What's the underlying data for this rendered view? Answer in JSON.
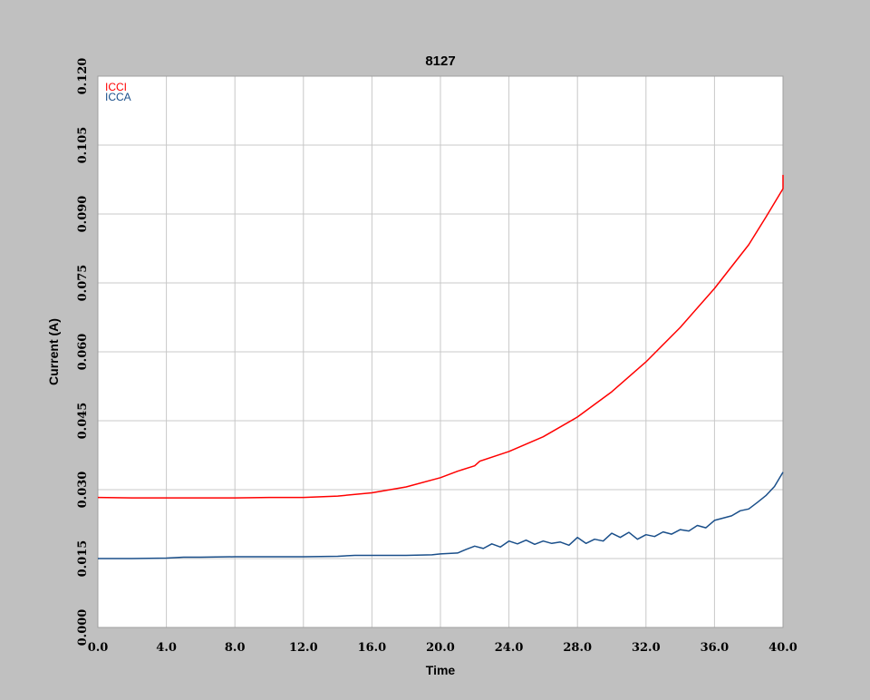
{
  "chart_data": {
    "type": "line",
    "title": "8127",
    "xlabel": "Time",
    "ylabel": "Current (A)",
    "xlim": [
      0,
      40
    ],
    "ylim": [
      0,
      0.12
    ],
    "x_ticks": [
      "0.0",
      "4.0",
      "8.0",
      "12.0",
      "16.0",
      "20.0",
      "24.0",
      "28.0",
      "32.0",
      "36.0",
      "40.0"
    ],
    "y_ticks": [
      "0.000",
      "0.015",
      "0.030",
      "0.045",
      "0.060",
      "0.075",
      "0.090",
      "0.105",
      "0.120"
    ],
    "grid": true,
    "legend_position": "top-left",
    "series": [
      {
        "name": "ICCI",
        "color": "#ff0000",
        "x": [
          0,
          2,
          4,
          6,
          8,
          10,
          12,
          14,
          16,
          18,
          20,
          21,
          22,
          22.3,
          24,
          26,
          28,
          30,
          32,
          34,
          36,
          38,
          39,
          40,
          40
        ],
        "y": [
          0.0283,
          0.0282,
          0.0282,
          0.0282,
          0.0282,
          0.0283,
          0.0283,
          0.0286,
          0.0293,
          0.0306,
          0.0326,
          0.034,
          0.0352,
          0.0362,
          0.0383,
          0.0415,
          0.0458,
          0.0513,
          0.0578,
          0.0653,
          0.0738,
          0.0833,
          0.0893,
          0.0955,
          0.0985
        ]
      },
      {
        "name": "ICCA",
        "color": "#1a4f8a",
        "x": [
          0,
          2,
          4,
          5,
          6,
          8,
          10,
          12,
          14,
          15,
          16,
          18,
          19.5,
          20,
          21,
          21.5,
          22,
          22.5,
          23,
          23.5,
          24,
          24.5,
          25,
          25.5,
          26,
          26.5,
          27,
          27.5,
          28,
          28.5,
          29,
          29.5,
          30,
          30.5,
          31,
          31.5,
          32,
          32.5,
          33,
          33.5,
          34,
          34.5,
          35,
          35.5,
          36,
          36.5,
          37,
          37.5,
          38,
          38.5,
          39,
          39.5,
          40
        ],
        "y": [
          0.015,
          0.015,
          0.0151,
          0.0153,
          0.0153,
          0.0154,
          0.0154,
          0.0154,
          0.0155,
          0.0157,
          0.0157,
          0.0157,
          0.0158,
          0.016,
          0.0162,
          0.017,
          0.0177,
          0.0172,
          0.0182,
          0.0175,
          0.0188,
          0.0182,
          0.019,
          0.0181,
          0.0188,
          0.0183,
          0.0186,
          0.0179,
          0.0196,
          0.0183,
          0.0192,
          0.0188,
          0.0205,
          0.0196,
          0.0207,
          0.0192,
          0.0202,
          0.0198,
          0.0208,
          0.0203,
          0.0213,
          0.021,
          0.0222,
          0.0217,
          0.0233,
          0.0238,
          0.0243,
          0.0254,
          0.0258,
          0.0272,
          0.0287,
          0.0307,
          0.0338
        ]
      }
    ]
  }
}
